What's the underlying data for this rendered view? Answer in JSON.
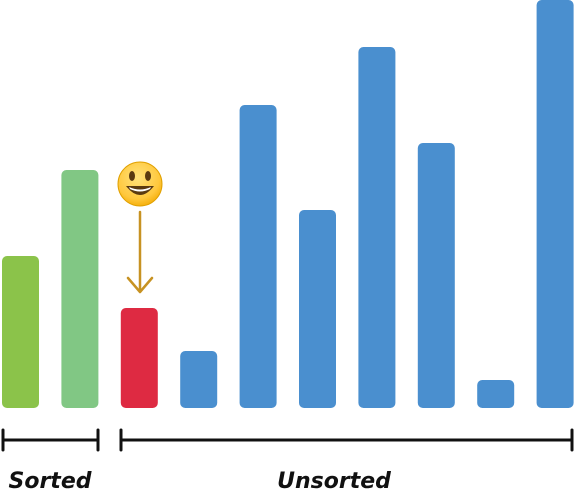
{
  "chart_data": {
    "type": "bar",
    "values": [
      152,
      238,
      100,
      57,
      303,
      198,
      361,
      265,
      28,
      408
    ],
    "states": [
      "sorted",
      "sorted",
      "current",
      "unsorted",
      "unsorted",
      "unsorted",
      "unsorted",
      "unsorted",
      "unsorted",
      "unsorted"
    ],
    "ylim": [
      0,
      408
    ],
    "grid": false
  },
  "colors": {
    "sorted_1": "#8bc34a",
    "sorted_2": "#81c784",
    "current": "#de2a42",
    "unsorted": "#4a8fcf",
    "arrow": "#c79222",
    "bracket": "#111111"
  },
  "indicator": {
    "icon": "smiling-face-icon"
  },
  "labels": {
    "sorted": "Sorted",
    "unsorted": "Unsorted"
  }
}
